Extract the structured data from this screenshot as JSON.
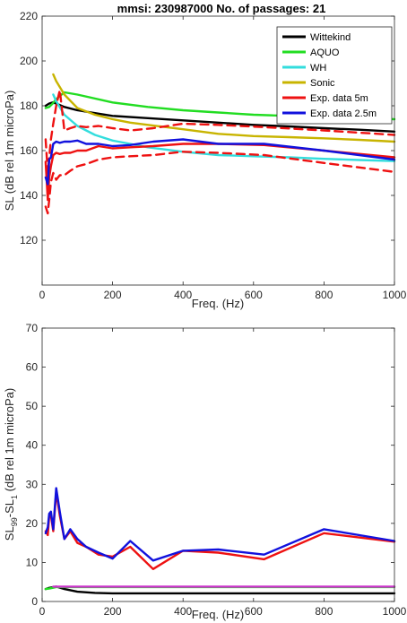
{
  "chart_data": [
    {
      "type": "line",
      "title": "mmsi: 230987000 No. of passages: 21",
      "xlabel": "Freq. (Hz)",
      "ylabel": "SL (dB rel 1m microPa)",
      "xlim": [
        0,
        1000
      ],
      "ylim": [
        100,
        220
      ],
      "xticks": [
        0,
        200,
        400,
        600,
        800,
        1000
      ],
      "yticks": [
        120,
        140,
        160,
        180,
        200,
        220
      ],
      "grid": false,
      "legend_position": "top-right",
      "series": [
        {
          "name": "Wittekind",
          "color": "#000000",
          "dash": "solid",
          "x": [
            10,
            20,
            30,
            40,
            63,
            100,
            200,
            300,
            400,
            500,
            600,
            700,
            800,
            900,
            1000
          ],
          "y": [
            180,
            181,
            181.5,
            181,
            179.5,
            178,
            175.5,
            174.5,
            173.5,
            172.5,
            171.5,
            170.8,
            170,
            169.3,
            168.5
          ]
        },
        {
          "name": "AQUO",
          "color": "#22dd22",
          "dash": "solid",
          "x": [
            10,
            20,
            30,
            40,
            63,
            100,
            200,
            300,
            400,
            500,
            600,
            700,
            800,
            900,
            1000
          ],
          "y": [
            179,
            179.5,
            181,
            183,
            186,
            185,
            181.5,
            179.5,
            178,
            177,
            176,
            175.5,
            175,
            174.5,
            174
          ]
        },
        {
          "name": "WH",
          "color": "#33dddd",
          "dash": "solid",
          "x": [
            31.5,
            40,
            63,
            100,
            150,
            200,
            250,
            300,
            400,
            500,
            600,
            700,
            800,
            900,
            1000
          ],
          "y": [
            185,
            182,
            176,
            171,
            167,
            164.5,
            163,
            161.5,
            159.5,
            158,
            157.5,
            157,
            156.3,
            155.8,
            155.3
          ]
        },
        {
          "name": "Sonic",
          "color": "#c8b400",
          "dash": "solid",
          "x": [
            31.5,
            40,
            63,
            100,
            150,
            200,
            250,
            300,
            400,
            500,
            600,
            700,
            800,
            900,
            1000
          ],
          "y": [
            194,
            191,
            185,
            179,
            176,
            174,
            172.5,
            171.5,
            169.5,
            167.5,
            166.5,
            166,
            165.5,
            164.8,
            164
          ]
        },
        {
          "name": "Exp. data 5m",
          "color": "#ee1111",
          "dash": "solid",
          "x": [
            10,
            16,
            20,
            25,
            31.5,
            40,
            50,
            63,
            80,
            100,
            125,
            160,
            200,
            250,
            315,
            400,
            500,
            630,
            800,
            1000
          ],
          "y": [
            155,
            138,
            148,
            153,
            158,
            159,
            158.5,
            159,
            159,
            160,
            160,
            162,
            161,
            161.5,
            162,
            163,
            163,
            162.5,
            160,
            157
          ]
        },
        {
          "name": "Exp. data 5m upper",
          "color": "#ee1111",
          "dash": "dashed",
          "x": [
            10,
            16,
            20,
            25,
            31.5,
            40,
            50,
            63,
            80,
            100,
            125,
            160,
            200,
            250,
            315,
            400,
            500,
            630,
            800,
            1000
          ],
          "y": [
            165,
            150,
            157,
            165,
            172,
            180,
            187,
            169,
            170,
            171,
            170.5,
            171,
            170,
            169,
            170,
            172,
            171.5,
            170.5,
            169,
            167
          ]
        },
        {
          "name": "Exp. data 5m lower",
          "color": "#ee1111",
          "dash": "dashed",
          "x": [
            10,
            16,
            20,
            25,
            31.5,
            40,
            50,
            63,
            80,
            100,
            125,
            160,
            200,
            250,
            315,
            400,
            500,
            630,
            800,
            1000
          ],
          "y": [
            135,
            132,
            138,
            146,
            150,
            147,
            149,
            149,
            151,
            153,
            154,
            156,
            157,
            157.5,
            158,
            159.5,
            159,
            158,
            154.5,
            150.5
          ]
        },
        {
          "name": "Exp. data 2.5m",
          "color": "#1111dd",
          "dash": "solid",
          "x": [
            10,
            16,
            20,
            25,
            31.5,
            40,
            50,
            63,
            80,
            100,
            125,
            160,
            200,
            250,
            315,
            400,
            500,
            630,
            800,
            1000
          ],
          "y": [
            148,
            145,
            156,
            157,
            163,
            164,
            163.5,
            164,
            164,
            164.5,
            163,
            163,
            162,
            162.5,
            164,
            165,
            163,
            163,
            160,
            156
          ]
        }
      ]
    },
    {
      "type": "line",
      "title": "",
      "xlabel": "Freq. (Hz)",
      "ylabel_parts": {
        "a": "SL",
        "a_sub": "99",
        "b": "-SL",
        "b_sub": "1",
        "c": " (dB rel 1m microPa)"
      },
      "xlim": [
        0,
        1000
      ],
      "ylim": [
        0,
        70
      ],
      "xticks": [
        0,
        200,
        400,
        600,
        800,
        1000
      ],
      "yticks": [
        0,
        10,
        20,
        30,
        40,
        50,
        60,
        70
      ],
      "grid": false,
      "series": [
        {
          "color": "#ee1111",
          "dash": "solid",
          "x": [
            10,
            16,
            20,
            25,
            31.5,
            40,
            50,
            63,
            80,
            100,
            125,
            160,
            200,
            250,
            315,
            400,
            500,
            630,
            800,
            1000
          ],
          "y": [
            18,
            17,
            22,
            22,
            18,
            28,
            22,
            16,
            18,
            15,
            14,
            12,
            11.5,
            14,
            8.3,
            13,
            12.5,
            10.8,
            17.5,
            15.3
          ]
        },
        {
          "color": "#1111dd",
          "dash": "solid",
          "x": [
            10,
            16,
            20,
            25,
            31.5,
            40,
            50,
            63,
            80,
            100,
            125,
            160,
            200,
            250,
            315,
            400,
            500,
            630,
            800,
            1000
          ],
          "y": [
            17.5,
            19,
            22.5,
            23,
            18.5,
            29,
            23,
            16,
            18.5,
            16,
            14,
            12.5,
            11,
            15.5,
            10.5,
            13,
            13.3,
            12,
            18.5,
            15.5
          ]
        },
        {
          "color": "#000000",
          "dash": "solid",
          "x": [
            10,
            20,
            40,
            63,
            100,
            150,
            200,
            300,
            400,
            500,
            600,
            700,
            800,
            900,
            1000
          ],
          "y": [
            3.2,
            3.5,
            3.8,
            3.2,
            2.5,
            2.2,
            2.1,
            2.1,
            2.1,
            2.1,
            2.1,
            2.1,
            2.1,
            2.1,
            2.1
          ]
        },
        {
          "color": "#22dd22",
          "dash": "solid",
          "x": [
            10,
            20,
            40,
            63,
            100,
            200,
            400,
            600,
            800,
            1000
          ],
          "y": [
            3.2,
            3.3,
            3.7,
            3.7,
            3.7,
            3.7,
            3.7,
            3.7,
            3.7,
            3.7
          ]
        },
        {
          "color": "#cc33cc",
          "dash": "solid",
          "x": [
            31.5,
            63,
            100,
            200,
            400,
            600,
            800,
            1000
          ],
          "y": [
            3.8,
            3.8,
            3.8,
            3.8,
            3.8,
            3.8,
            3.8,
            3.8
          ]
        }
      ]
    }
  ]
}
